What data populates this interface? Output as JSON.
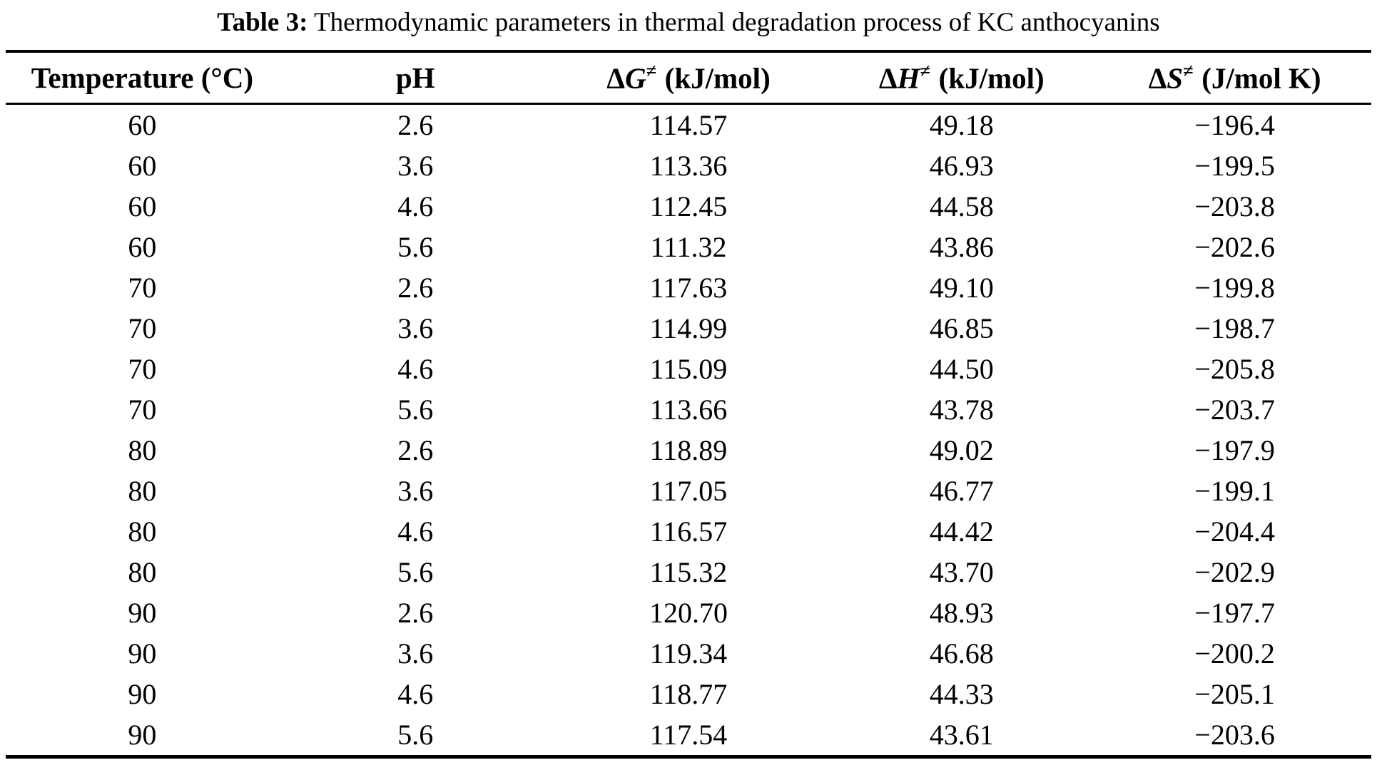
{
  "caption": {
    "label": "Table 3:",
    "text": " Thermodynamic parameters in thermal degradation process of KC anthocyanins"
  },
  "table": {
    "columns": [
      {
        "label": "Temperature (°C)"
      },
      {
        "label": "pH"
      },
      {
        "delta": "Δ",
        "qty": "G",
        "sup": "≠",
        "unit": "(kJ/mol)"
      },
      {
        "delta": "Δ",
        "qty": "H",
        "sup": "≠",
        "unit": "(kJ/mol)"
      },
      {
        "delta": "Δ",
        "qty": "S",
        "sup": "≠",
        "unit": "(J/mol K)"
      }
    ],
    "rows": [
      [
        "60",
        "2.6",
        "114.57",
        "49.18",
        "−196.4"
      ],
      [
        "60",
        "3.6",
        "113.36",
        "46.93",
        "−199.5"
      ],
      [
        "60",
        "4.6",
        "112.45",
        "44.58",
        "−203.8"
      ],
      [
        "60",
        "5.6",
        "111.32",
        "43.86",
        "−202.6"
      ],
      [
        "70",
        "2.6",
        "117.63",
        "49.10",
        "−199.8"
      ],
      [
        "70",
        "3.6",
        "114.99",
        "46.85",
        "−198.7"
      ],
      [
        "70",
        "4.6",
        "115.09",
        "44.50",
        "−205.8"
      ],
      [
        "70",
        "5.6",
        "113.66",
        "43.78",
        "−203.7"
      ],
      [
        "80",
        "2.6",
        "118.89",
        "49.02",
        "−197.9"
      ],
      [
        "80",
        "3.6",
        "117.05",
        "46.77",
        "−199.1"
      ],
      [
        "80",
        "4.6",
        "116.57",
        "44.42",
        "−204.4"
      ],
      [
        "80",
        "5.6",
        "115.32",
        "43.70",
        "−202.9"
      ],
      [
        "90",
        "2.6",
        "120.70",
        "48.93",
        "−197.7"
      ],
      [
        "90",
        "3.6",
        "119.34",
        "46.68",
        "−200.2"
      ],
      [
        "90",
        "4.6",
        "118.77",
        "44.33",
        "−205.1"
      ],
      [
        "90",
        "5.6",
        "117.54",
        "43.61",
        "−203.6"
      ]
    ]
  },
  "chart_data": {
    "type": "table",
    "title": "Table 3: Thermodynamic parameters in thermal degradation process of KC anthocyanins",
    "columns": [
      "Temperature (°C)",
      "pH",
      "ΔG≠ (kJ/mol)",
      "ΔH≠ (kJ/mol)",
      "ΔS≠ (J/mol K)"
    ],
    "rows": [
      [
        60,
        2.6,
        114.57,
        49.18,
        -196.4
      ],
      [
        60,
        3.6,
        113.36,
        46.93,
        -199.5
      ],
      [
        60,
        4.6,
        112.45,
        44.58,
        -203.8
      ],
      [
        60,
        5.6,
        111.32,
        43.86,
        -202.6
      ],
      [
        70,
        2.6,
        117.63,
        49.1,
        -199.8
      ],
      [
        70,
        3.6,
        114.99,
        46.85,
        -198.7
      ],
      [
        70,
        4.6,
        115.09,
        44.5,
        -205.8
      ],
      [
        70,
        5.6,
        113.66,
        43.78,
        -203.7
      ],
      [
        80,
        2.6,
        118.89,
        49.02,
        -197.9
      ],
      [
        80,
        3.6,
        117.05,
        46.77,
        -199.1
      ],
      [
        80,
        4.6,
        116.57,
        44.42,
        -204.4
      ],
      [
        80,
        5.6,
        115.32,
        43.7,
        -202.9
      ],
      [
        90,
        2.6,
        120.7,
        48.93,
        -197.7
      ],
      [
        90,
        3.6,
        119.34,
        46.68,
        -200.2
      ],
      [
        90,
        4.6,
        118.77,
        44.33,
        -205.1
      ],
      [
        90,
        5.6,
        117.54,
        43.61,
        -203.6
      ]
    ]
  }
}
